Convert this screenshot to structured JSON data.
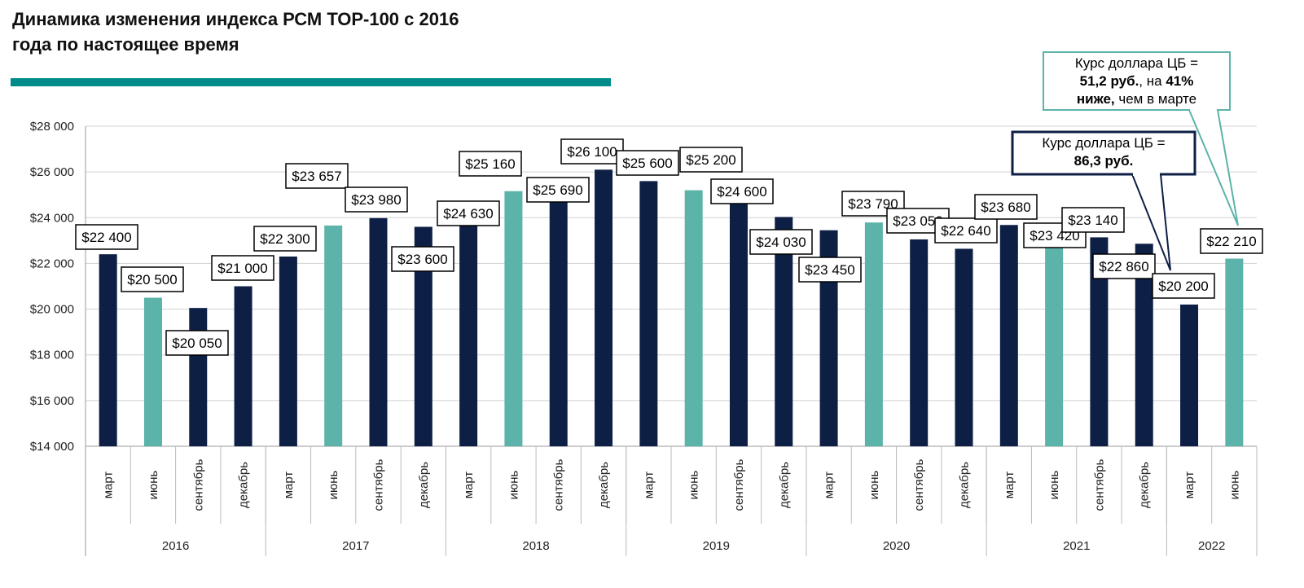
{
  "chart_data": {
    "type": "bar",
    "title": [
      "Динамика изменения индекса РСМ ТОР-100 с 2016",
      "года по настоящее время"
    ],
    "groups": [
      {
        "label": "2016",
        "categories": [
          "март",
          "июнь",
          "сентябрь",
          "декабрь"
        ],
        "values": [
          22400,
          20500,
          20050,
          21000
        ],
        "value_labels": [
          "$22 400",
          "$20 500",
          "$20 050",
          "$21 000"
        ],
        "colors": [
          "#0d1f45",
          "#5bb3a9",
          "#0d1f45",
          "#0d1f45"
        ]
      },
      {
        "label": "2017",
        "categories": [
          "март",
          "июнь",
          "сентябрь",
          "декабрь"
        ],
        "values": [
          22300,
          23657,
          23980,
          23600
        ],
        "value_labels": [
          "$22 300",
          "$23 657",
          "$23 980",
          "$23 600"
        ],
        "colors": [
          "#0d1f45",
          "#5bb3a9",
          "#0d1f45",
          "#0d1f45"
        ]
      },
      {
        "label": "2018",
        "categories": [
          "март",
          "июнь",
          "сентябрь",
          "декабрь"
        ],
        "values": [
          24630,
          25160,
          25690,
          26100
        ],
        "value_labels": [
          "$24 630",
          "$25 160",
          "$25 690",
          "$26 100"
        ],
        "colors": [
          "#0d1f45",
          "#5bb3a9",
          "#0d1f45",
          "#0d1f45"
        ]
      },
      {
        "label": "2019",
        "categories": [
          "март",
          "июнь",
          "сентябрь",
          "декабрь"
        ],
        "values": [
          25600,
          25200,
          24600,
          24030
        ],
        "value_labels": [
          "$25 600",
          "$25 200",
          "$24 600",
          "$24 030"
        ],
        "colors": [
          "#0d1f45",
          "#5bb3a9",
          "#0d1f45",
          "#0d1f45"
        ]
      },
      {
        "label": "2020",
        "categories": [
          "март",
          "июнь",
          "сентябрь",
          "декабрь"
        ],
        "values": [
          23450,
          23790,
          23050,
          22640
        ],
        "value_labels": [
          "$23 450",
          "$23 790",
          "$23 050",
          "$22 640"
        ],
        "colors": [
          "#0d1f45",
          "#5bb3a9",
          "#0d1f45",
          "#0d1f45"
        ]
      },
      {
        "label": "2021",
        "categories": [
          "март",
          "июнь",
          "сентябрь",
          "декабрь"
        ],
        "values": [
          23680,
          23420,
          23140,
          22860
        ],
        "value_labels": [
          "$23 680",
          "$23 420",
          "$23 140",
          "$22 860"
        ],
        "colors": [
          "#0d1f45",
          "#5bb3a9",
          "#0d1f45",
          "#0d1f45"
        ]
      },
      {
        "label": "2022",
        "categories": [
          "март",
          "июнь"
        ],
        "values": [
          20200,
          22210
        ],
        "value_labels": [
          "$20 200",
          "$22 210"
        ],
        "colors": [
          "#0d1f45",
          "#5bb3a9"
        ]
      }
    ],
    "ylim": [
      14000,
      28000
    ],
    "yticks": [
      {
        "value": 14000,
        "label": "$14 000"
      },
      {
        "value": 16000,
        "label": "$16 000"
      },
      {
        "value": 18000,
        "label": "$18 000"
      },
      {
        "value": 20000,
        "label": "$20 000"
      },
      {
        "value": 22000,
        "label": "$22 000"
      },
      {
        "value": 24000,
        "label": "$24 000"
      },
      {
        "value": 26000,
        "label": "$26 000"
      },
      {
        "value": 28000,
        "label": "$28 000"
      }
    ],
    "grid": true,
    "annotations": [
      {
        "color": "#5bb3a9",
        "lines": [
          [
            {
              "text": "Курс доллара ЦБ =",
              "bold": false
            }
          ],
          [
            {
              "text": "51,2 руб.",
              "bold": true
            },
            {
              "text": ", на ",
              "bold": false
            },
            {
              "text": "41%",
              "bold": true
            }
          ],
          [
            {
              "text": "ниже,",
              "bold": true
            },
            {
              "text": " чем в марте",
              "bold": false
            }
          ]
        ]
      },
      {
        "color": "#0d1f45",
        "lines": [
          [
            {
              "text": "Курс доллара ЦБ =",
              "bold": false
            }
          ],
          [
            {
              "text": "86,3 руб.",
              "bold": true
            }
          ]
        ]
      }
    ]
  }
}
